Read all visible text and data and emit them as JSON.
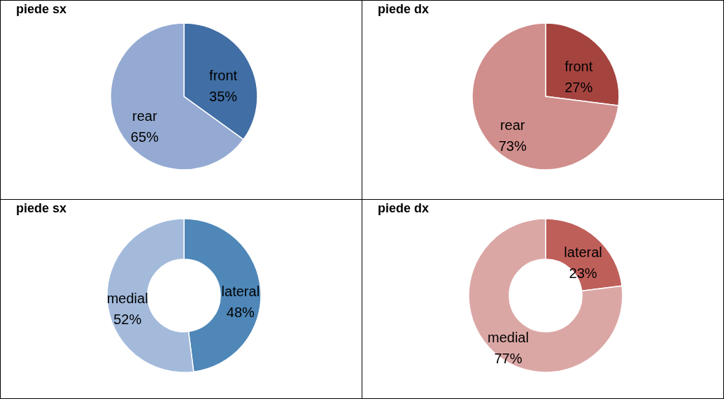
{
  "chart_data": [
    {
      "type": "pie",
      "title": "piede sx",
      "categories": [
        "front",
        "rear"
      ],
      "values": [
        35,
        65
      ],
      "value_labels": [
        "35%",
        "65%"
      ],
      "colors": [
        "#416ea4",
        "#94aad2"
      ]
    },
    {
      "type": "pie",
      "title": "piede dx",
      "categories": [
        "front",
        "rear"
      ],
      "values": [
        27,
        73
      ],
      "value_labels": [
        "27%",
        "73%"
      ],
      "colors": [
        "#a5443f",
        "#d08f8c"
      ]
    },
    {
      "type": "donut",
      "title": "piede sx",
      "categories": [
        "lateral",
        "medial"
      ],
      "values": [
        48,
        52
      ],
      "value_labels": [
        "48%",
        "52%"
      ],
      "colors": [
        "#4e87b8",
        "#a3badb"
      ]
    },
    {
      "type": "donut",
      "title": "piede dx",
      "categories": [
        "lateral",
        "medial"
      ],
      "values": [
        23,
        77
      ],
      "value_labels": [
        "23%",
        "77%"
      ],
      "colors": [
        "#bf5f5a",
        "#dba7a5"
      ]
    }
  ]
}
